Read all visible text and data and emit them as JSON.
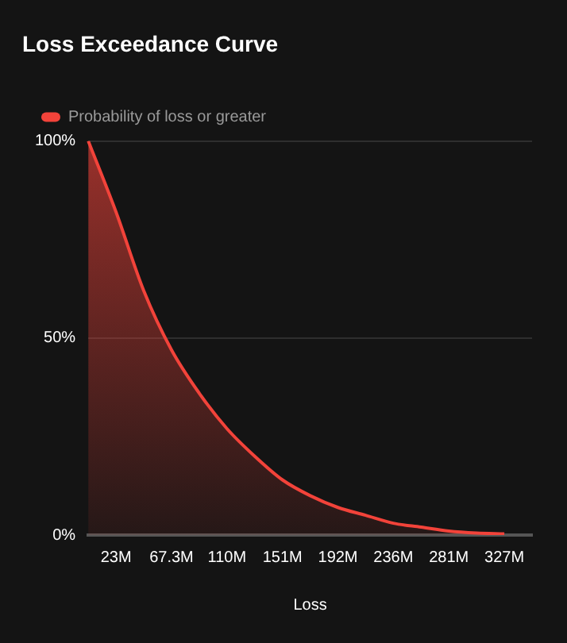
{
  "chart_data": {
    "type": "area",
    "title": "Loss Exceedance Curve",
    "xlabel": "Loss",
    "categories": [
      null,
      "23M",
      null,
      "67.3M",
      null,
      "110M",
      null,
      "151M",
      null,
      "192M",
      null,
      "236M",
      null,
      "281M",
      null,
      "327M",
      null
    ],
    "series": [
      {
        "name": "Probability of loss or greater",
        "color": "#f2433a",
        "values": [
          100,
          82,
          62,
          47,
          36,
          27,
          20,
          14,
          10,
          7,
          5,
          3,
          2,
          1,
          0.5,
          0.3,
          null
        ]
      }
    ],
    "ylim": [
      0,
      100
    ],
    "yticks": [
      {
        "value": 0,
        "label": "0%"
      },
      {
        "value": 50,
        "label": "50%"
      },
      {
        "value": 100,
        "label": "100%"
      }
    ],
    "grid": "y",
    "legend": "top left"
  }
}
